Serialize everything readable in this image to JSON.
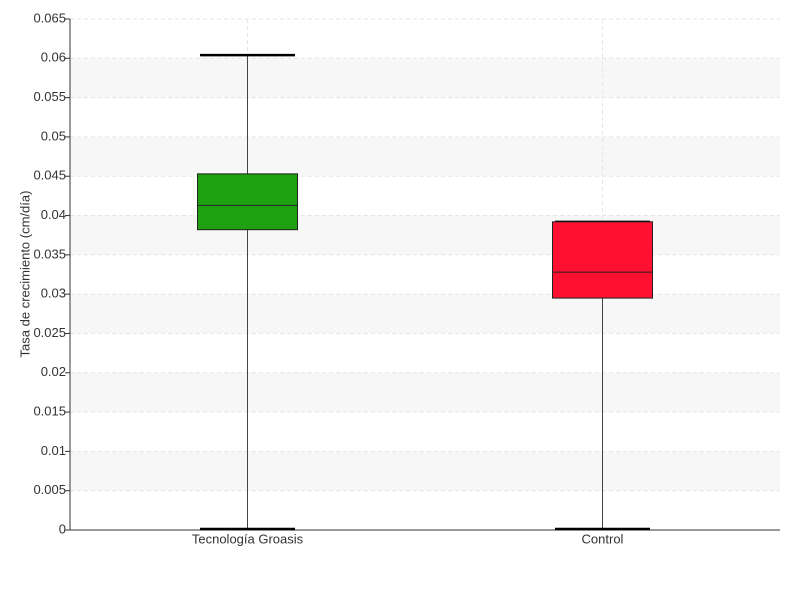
{
  "chart_data": {
    "type": "box",
    "ylabel": "Tasa de crecimiento (cm/día)",
    "categories": [
      "Tecnología Groasis",
      "Control"
    ],
    "colors": [
      "#1fa010",
      "#ff1030"
    ],
    "boxes": [
      {
        "min": 0,
        "q1": 0.0382,
        "median": 0.0413,
        "q3": 0.0453,
        "max": 0.0604
      },
      {
        "min": 0,
        "q1": 0.0295,
        "median": 0.0328,
        "q3": 0.0392,
        "max": 0.0392
      }
    ],
    "ylim": [
      0,
      0.065
    ],
    "yticks": [
      0,
      0.005,
      0.01,
      0.015,
      0.02,
      0.025,
      0.03,
      0.035,
      0.04,
      0.045,
      0.05,
      0.055,
      0.06,
      0.065
    ],
    "grid": true
  }
}
